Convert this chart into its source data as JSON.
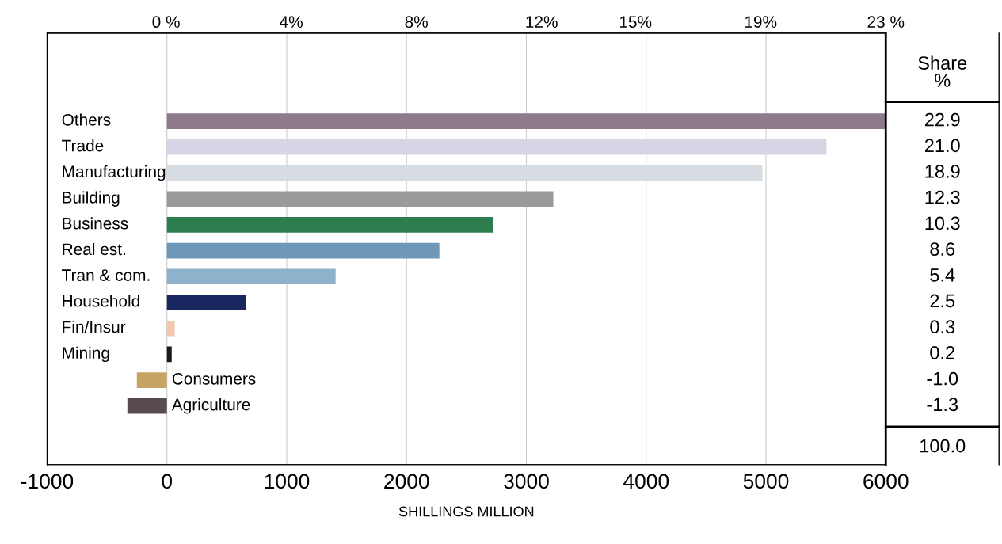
{
  "chart_data": {
    "type": "bar",
    "orientation": "horizontal",
    "xlabel": "SHILLINGS MILLION",
    "categories": [
      "Others",
      "Trade",
      "Manufacturing",
      "Building",
      "Business",
      "Real est.",
      "Tran & com.",
      "Household",
      "Fin/Insur",
      "Mining",
      "Consumers",
      "Agriculture"
    ],
    "values": [
      6000,
      5505,
      4970,
      3225,
      2723,
      2274,
      1408,
      661,
      66,
      40,
      -251,
      -330
    ],
    "colors": [
      "#8e7a8a",
      "#d8d4e6",
      "#d6dce2",
      "#9a9a9a",
      "#2e7d4e",
      "#6f97b8",
      "#8fb2cc",
      "#1a2660",
      "#f0c8b0",
      "#1a1a1a",
      "#c8a464",
      "#5a4a52"
    ],
    "annotations": [
      "Share\n%",
      "100.0",
      "22.9",
      "21.0",
      "18.9",
      "12.3",
      "10.3",
      "8.6",
      "5.4",
      "2.5",
      "0.3",
      "0.2",
      "-1.0",
      "-1.3"
    ],
    "xlim": [
      -1000,
      6000
    ],
    "xticks": [
      -1000,
      0,
      1000,
      2000,
      3000,
      4000,
      5000,
      6000
    ],
    "x2lim": [
      -3.8,
      23
    ],
    "x2ticks": [
      {
        "value": 0,
        "label": "0 %"
      },
      {
        "value": 4,
        "label": "4%"
      },
      {
        "value": 8,
        "label": "8%"
      },
      {
        "value": 12,
        "label": "12%"
      },
      {
        "value": 15,
        "label": "15%"
      },
      {
        "value": 19,
        "label": "19%"
      },
      {
        "value": 23,
        "label": "23 %"
      }
    ],
    "grid": "x"
  }
}
